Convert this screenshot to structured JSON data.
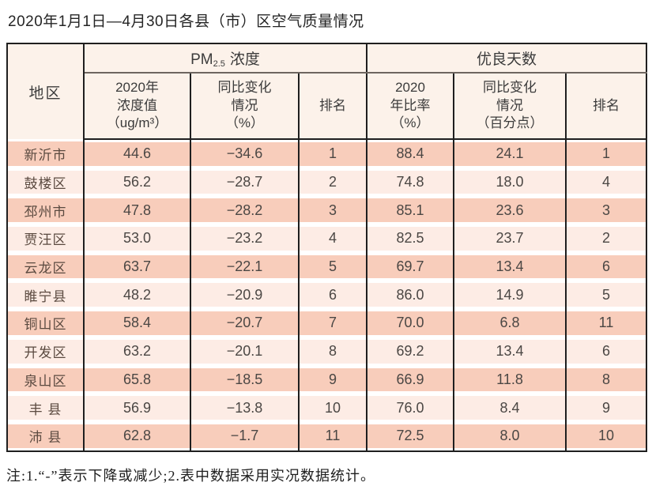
{
  "title": "2020年1月1日—4月30日各县（市）区空气质量情况",
  "table": {
    "group_headers": {
      "region": "地区",
      "pm": {
        "prefix": "PM",
        "sub": "2.5",
        "suffix": "浓度"
      },
      "good_days": "优良天数"
    },
    "col_headers": {
      "pm_value": "2020年\n浓度值\n（ug/m³）",
      "pm_change": "同比变化\n情况\n（%）",
      "pm_rank": "排名",
      "good_rate": "2020\n年比率\n（%）",
      "good_change": "同比变化\n情况\n（百分点）",
      "good_rank": "排名"
    },
    "rows": [
      {
        "region": "新沂市",
        "pm_value": "44.6",
        "pm_change": "−34.6",
        "pm_rank": "1",
        "good_rate": "88.4",
        "good_change": "24.1",
        "good_rank": "1"
      },
      {
        "region": "鼓楼区",
        "pm_value": "56.2",
        "pm_change": "−28.7",
        "pm_rank": "2",
        "good_rate": "74.8",
        "good_change": "18.0",
        "good_rank": "4"
      },
      {
        "region": "邳州市",
        "pm_value": "47.8",
        "pm_change": "−28.2",
        "pm_rank": "3",
        "good_rate": "85.1",
        "good_change": "23.6",
        "good_rank": "3"
      },
      {
        "region": "贾汪区",
        "pm_value": "53.0",
        "pm_change": "−23.2",
        "pm_rank": "4",
        "good_rate": "82.5",
        "good_change": "23.7",
        "good_rank": "2"
      },
      {
        "region": "云龙区",
        "pm_value": "63.7",
        "pm_change": "−22.1",
        "pm_rank": "5",
        "good_rate": "69.7",
        "good_change": "13.4",
        "good_rank": "6"
      },
      {
        "region": "睢宁县",
        "pm_value": "48.2",
        "pm_change": "−20.9",
        "pm_rank": "6",
        "good_rate": "86.0",
        "good_change": "14.9",
        "good_rank": "5"
      },
      {
        "region": "铜山区",
        "pm_value": "58.4",
        "pm_change": "−20.7",
        "pm_rank": "7",
        "good_rate": "70.0",
        "good_change": "6.8",
        "good_rank": "11"
      },
      {
        "region": "开发区",
        "pm_value": "63.2",
        "pm_change": "−20.1",
        "pm_rank": "8",
        "good_rate": "69.2",
        "good_change": "13.4",
        "good_rank": "6"
      },
      {
        "region": "泉山区",
        "pm_value": "65.8",
        "pm_change": "−18.5",
        "pm_rank": "9",
        "good_rate": "66.9",
        "good_change": "11.8",
        "good_rank": "8"
      },
      {
        "region": "丰 县",
        "pm_value": "56.9",
        "pm_change": "−13.8",
        "pm_rank": "10",
        "good_rate": "76.0",
        "good_change": "8.4",
        "good_rank": "9"
      },
      {
        "region": "沛 县",
        "pm_value": "62.8",
        "pm_change": "−1.7",
        "pm_rank": "11",
        "good_rate": "72.5",
        "good_change": "8.0",
        "good_rank": "10"
      }
    ]
  },
  "note": "注:1.“-”表示下降或减少;2.表中数据采用实况数据统计。",
  "colors": {
    "row_band_odd": "#f8cdbb",
    "row_band_even": "#fdece5",
    "header_bg": "#fcf2ea",
    "border_dark": "#1f1f1f",
    "region_text": "#5b4a40",
    "value_text": "#4b4744"
  }
}
